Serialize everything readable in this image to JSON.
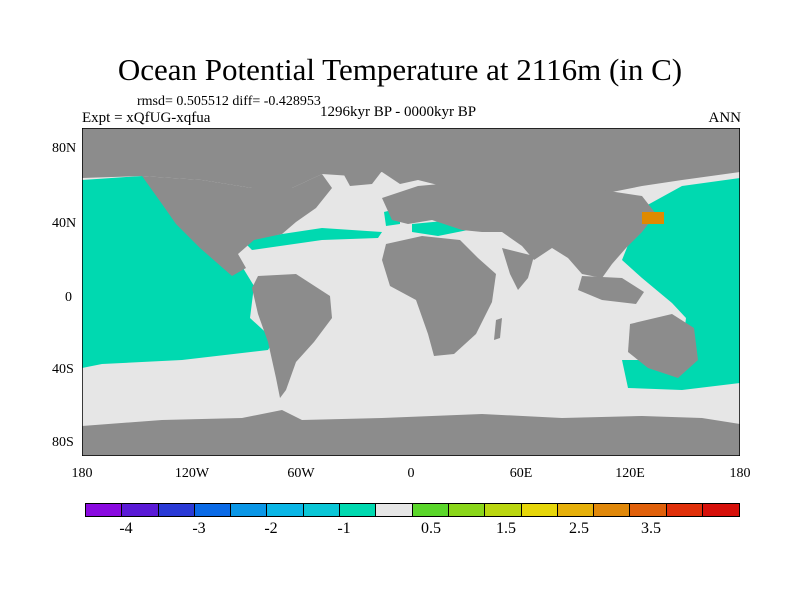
{
  "header": {
    "title": "Ocean Potential Temperature at 2116m (in C)",
    "stats": "rmsd= 0.505512 diff= -0.428953",
    "experiment": "Expt = xQfUG-xqfua",
    "period": "1296kyr BP - 0000kyr BP",
    "season": "ANN"
  },
  "axes": {
    "y_labels": [
      "80N",
      "40N",
      "0",
      "40S",
      "80S"
    ],
    "x_labels": [
      "180",
      "120W",
      "60W",
      "0",
      "60E",
      "120E",
      "180"
    ]
  },
  "colors": {
    "land": "#8c8c8c",
    "neutral_ocean": "#e6e6e6",
    "cool_ocean": "#00d9b0",
    "warm_patch": "#e08a00"
  },
  "colorbar": {
    "colors": [
      "#8a0ae0",
      "#5a1ad6",
      "#2a3ad6",
      "#0a6ae6",
      "#0a96e6",
      "#0ab6e6",
      "#0ac6d6",
      "#00d9b0",
      "#e6e6e6",
      "#5ad62a",
      "#8ad61a",
      "#bad610",
      "#e6d60a",
      "#e6b00a",
      "#e0880a",
      "#e0600a",
      "#e0300a",
      "#d6100a"
    ],
    "labels": [
      "-4",
      "-3",
      "-2",
      "-1",
      "0.5",
      "1.5",
      "2.5",
      "3.5"
    ]
  }
}
